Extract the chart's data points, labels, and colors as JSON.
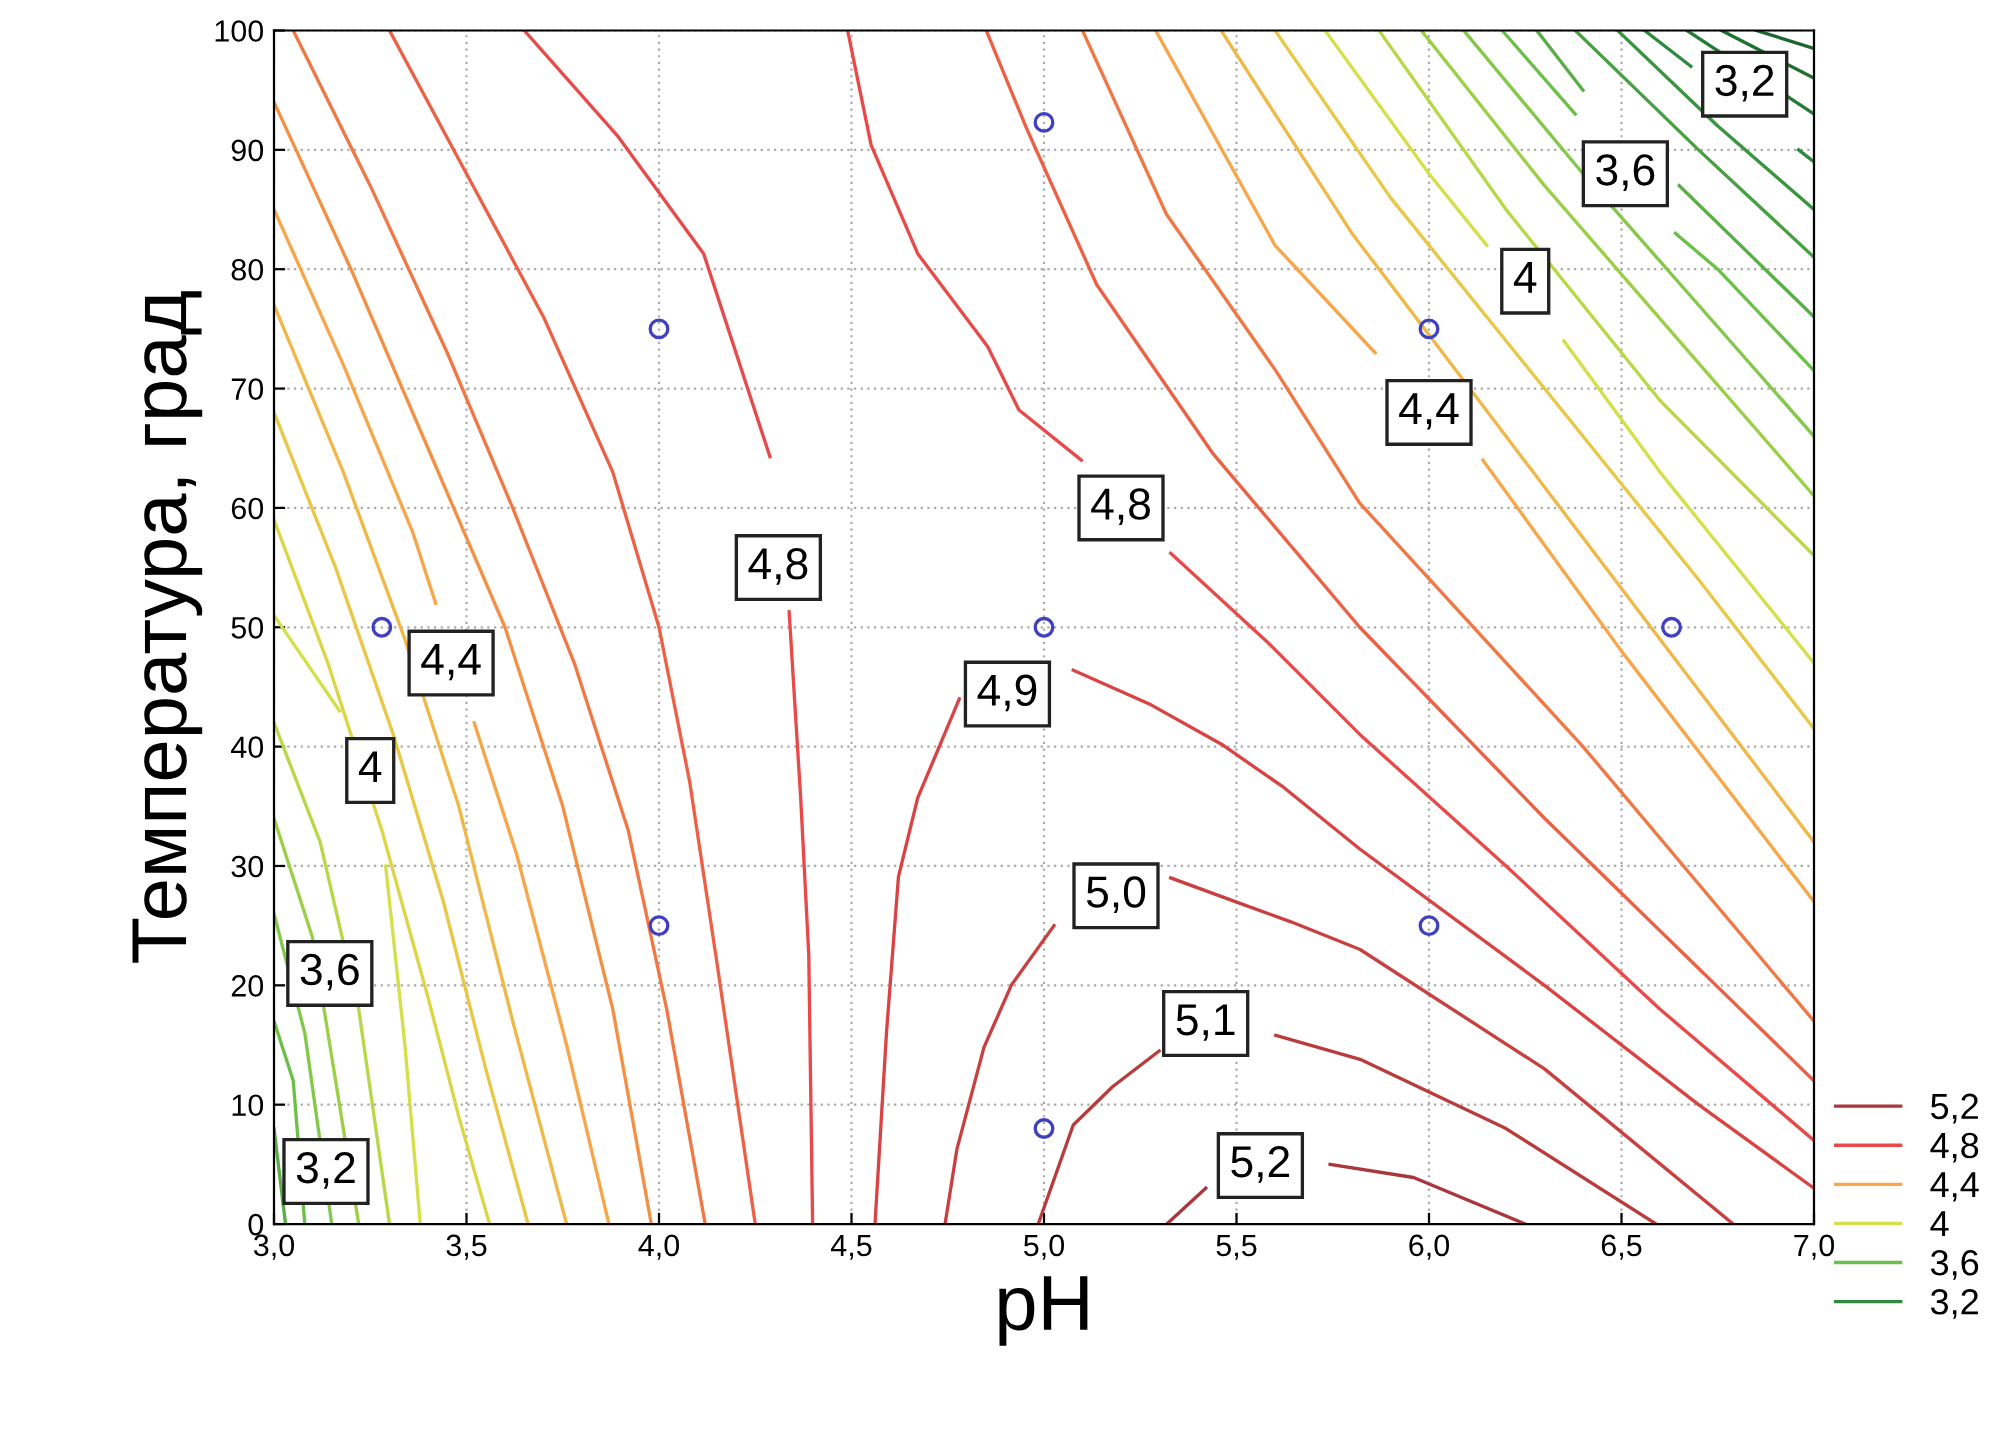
{
  "chart_data": {
    "type": "line",
    "xlabel": "pH",
    "ylabel": "Температура, град",
    "xlim": [
      3,
      7
    ],
    "ylim": [
      0,
      100
    ],
    "xticks": [
      {
        "value": 3,
        "label": "3,0"
      },
      {
        "value": 3.5,
        "label": "3,5"
      },
      {
        "value": 4,
        "label": "4,0"
      },
      {
        "value": 4.5,
        "label": "4,5"
      },
      {
        "value": 5,
        "label": "5,0"
      },
      {
        "value": 5.5,
        "label": "5,5"
      },
      {
        "value": 6,
        "label": "6,0"
      },
      {
        "value": 6.5,
        "label": "6,5"
      },
      {
        "value": 7,
        "label": "7,0"
      }
    ],
    "yticks": [
      0,
      10,
      20,
      30,
      40,
      50,
      60,
      70,
      80,
      90,
      100
    ],
    "grid": true,
    "legend": "right",
    "series": [
      {
        "name": "5,2",
        "color": "#a8383c",
        "x": [
          5.319,
          5.42,
          5.562,
          5.743,
          5.96,
          6.25
        ],
        "values": [
          0,
          3.0,
          null,
          5.0,
          3.9,
          0
        ]
      },
      {
        "name": "4,8",
        "color": "#e84a4a",
        "x": [
          3.65,
          3.894,
          4.116,
          4.288,
          4.31,
          4.338,
          4.368,
          4.389,
          4.399
        ],
        "values": [
          100,
          91.1,
          81.3,
          64.3,
          null,
          51.3,
          35.7,
          22.6,
          0
        ]
      },
      {
        "name": "4,4",
        "color": "#f7a64a",
        "x": [
          3.0,
          3.18,
          3.36,
          3.42,
          3.46,
          3.52,
          3.63,
          3.76,
          3.87
        ],
        "values": [
          85,
          72,
          58,
          52,
          null,
          42,
          31,
          15,
          0
        ]
      },
      {
        "name": "4",
        "color": "#d4e04a",
        "x": [
          3.0,
          3.17,
          3.25,
          3.29,
          3.34,
          3.38
        ],
        "values": [
          51,
          43,
          null,
          30,
          15,
          0
        ]
      },
      {
        "name": "3,6",
        "color": "#6cc04a",
        "x": [
          3.0,
          3.05,
          3.08
        ],
        "values": [
          17,
          12,
          0
        ]
      },
      {
        "name": "3,2",
        "color": "#2e8a3e",
        "x": [
          6.56,
          6.68,
          6.82,
          6.96,
          7.0
        ],
        "values": [
          100,
          97,
          null,
          90,
          89
        ]
      },
      {
        "color": "#ec6046",
        "x": [
          3.3,
          3.5,
          3.7,
          3.88,
          4.0,
          4.08,
          4.15,
          4.25
        ],
        "values": [
          100,
          88,
          76,
          63,
          50,
          37,
          22,
          0
        ]
      },
      {
        "color": "#f07844",
        "x": [
          3.05,
          3.25,
          3.45,
          3.62,
          3.78,
          3.92,
          4.02,
          4.12
        ],
        "values": [
          100,
          87,
          73,
          60,
          47,
          33,
          18,
          0
        ]
      },
      {
        "color": "#f49044",
        "x": [
          3.0,
          3.2,
          3.4,
          3.6,
          3.75,
          3.88,
          3.98
        ],
        "values": [
          94,
          80,
          65,
          50,
          35,
          18,
          0
        ]
      },
      {
        "color": "#f0b848",
        "x": [
          3.0,
          3.18,
          3.34,
          3.48,
          3.62,
          3.76
        ],
        "values": [
          77,
          63,
          49,
          35,
          17,
          0
        ]
      },
      {
        "color": "#e8c846",
        "x": [
          3.0,
          3.16,
          3.31,
          3.44,
          3.55,
          3.66
        ],
        "values": [
          68,
          55,
          41,
          27,
          13,
          0
        ]
      },
      {
        "color": "#dcd646",
        "x": [
          3.0,
          3.14,
          3.28,
          3.4,
          3.48,
          3.56
        ],
        "values": [
          59,
          47,
          33,
          19,
          9,
          0
        ]
      },
      {
        "color": "#b8d848",
        "x": [
          3.0,
          3.12,
          3.22,
          3.3
        ],
        "values": [
          42,
          32,
          18,
          0
        ]
      },
      {
        "color": "#9ccf48",
        "x": [
          3.0,
          3.1,
          3.16,
          3.22
        ],
        "values": [
          34,
          24,
          12,
          0
        ]
      },
      {
        "color": "#84c84a",
        "x": [
          3.0,
          3.08,
          3.15
        ],
        "values": [
          26,
          16,
          0
        ]
      },
      {
        "color": "#5aae46",
        "x": [
          3.0,
          3.03
        ],
        "values": [
          8,
          0
        ]
      },
      {
        "color": "#e84a4a",
        "x": [
          4.49,
          4.551,
          4.672,
          4.854,
          4.935,
          5.097,
          5.2,
          5.329,
          5.582,
          5.821,
          6.2,
          6.6,
          7.0
        ],
        "values": [
          100,
          90.4,
          81.3,
          73.5,
          68.2,
          64.0,
          null,
          56.2,
          48.7,
          41,
          30,
          18,
          7
        ]
      },
      {
        "color": "#d84444",
        "x": [
          4.561,
          4.591,
          4.622,
          4.672,
          4.78,
          4.905,
          5.076,
          5.278,
          5.461,
          5.622,
          5.821,
          6.3,
          6.7,
          7.0
        ],
        "values": [
          0,
          16.1,
          29.1,
          35.7,
          44,
          null,
          46.4,
          43.5,
          40.2,
          36.6,
          31.4,
          20,
          10,
          3
        ]
      },
      {
        "color": "#c84040",
        "x": [
          4.743,
          4.774,
          4.844,
          4.915,
          5.026,
          5.187,
          5.329,
          5.481,
          5.643,
          5.821,
          6.3,
          6.79
        ],
        "values": [
          0,
          6.3,
          14.8,
          20.0,
          25,
          null,
          29.0,
          27.2,
          25.3,
          23.0,
          13,
          0
        ]
      },
      {
        "color": "#b83c3c",
        "x": [
          4.985,
          5.076,
          5.178,
          5.299,
          5.42,
          5.602,
          5.821,
          6.2,
          6.59
        ],
        "values": [
          0,
          8.3,
          11.5,
          14.5,
          null,
          15.8,
          13.8,
          8,
          0
        ]
      },
      {
        "color": "#ec6046",
        "x": [
          4.85,
          4.956,
          5.137,
          5.44,
          5.82,
          6.3,
          7.0
        ],
        "values": [
          100,
          91.7,
          78.7,
          64.5,
          50,
          34,
          12
        ]
      },
      {
        "color": "#f07844",
        "x": [
          5.1,
          5.318,
          5.602,
          5.82,
          6.4,
          7.0
        ],
        "values": [
          100,
          84.6,
          71.5,
          60.4,
          40,
          17
        ]
      },
      {
        "color": "#f7a64a",
        "x": [
          5.29,
          5.6,
          5.86,
          6.0,
          6.14,
          6.5,
          7.0
        ],
        "values": [
          100,
          82,
          73,
          null,
          64,
          48,
          27
        ]
      },
      {
        "color": "#f0b848",
        "x": [
          5.46,
          5.8,
          6.2,
          6.6,
          7.0
        ],
        "values": [
          100,
          83,
          66,
          49,
          32
        ]
      },
      {
        "color": "#e8c846",
        "x": [
          5.6,
          5.9,
          6.3,
          6.7,
          7.0
        ],
        "values": [
          100,
          86,
          70,
          54,
          41.5
        ]
      },
      {
        "color": "#d4e04a",
        "x": [
          5.73,
          6.0,
          6.15,
          6.25,
          6.35,
          6.6,
          7.0
        ],
        "values": [
          100,
          88,
          82,
          null,
          74,
          63,
          47
        ]
      },
      {
        "color": "#b8d848",
        "x": [
          5.87,
          6.2,
          6.6,
          7.0
        ],
        "values": [
          100,
          85,
          69,
          56
        ]
      },
      {
        "color": "#9ccf48",
        "x": [
          5.98,
          6.3,
          6.65,
          7.0
        ],
        "values": [
          100,
          87,
          74,
          61
        ]
      },
      {
        "color": "#84c84a",
        "x": [
          6.09,
          6.4,
          6.7,
          7.0
        ],
        "values": [
          100,
          88,
          77,
          66
        ]
      },
      {
        "color": "#6cc04a",
        "x": [
          6.19,
          6.38,
          6.51,
          6.64,
          6.75,
          7.0
        ],
        "values": [
          100,
          93,
          null,
          83,
          80,
          71.5
        ]
      },
      {
        "color": "#5aae46",
        "x": [
          6.28,
          6.4,
          6.51,
          6.65,
          7.0
        ],
        "values": [
          100,
          95,
          null,
          87,
          76
        ]
      },
      {
        "color": "#48a042",
        "x": [
          6.38,
          6.7,
          7.0
        ],
        "values": [
          100,
          90,
          81
        ]
      },
      {
        "color": "#3a9440",
        "x": [
          6.49,
          6.75,
          7.0
        ],
        "values": [
          100,
          92,
          85
        ]
      },
      {
        "color": "#267c36",
        "x": [
          6.67,
          7.0
        ],
        "values": [
          100,
          93
        ]
      },
      {
        "color": "#207030",
        "x": [
          6.76,
          7.0
        ],
        "values": [
          100,
          96
        ]
      },
      {
        "color": "#1c6630",
        "x": [
          6.85,
          7.0
        ],
        "values": [
          100,
          98.5
        ]
      },
      {
        "type": "scatter",
        "marker": "circle",
        "color": "#4040c0",
        "x": [
          3.28,
          4.0,
          4.0,
          5.0,
          5.0,
          5.0,
          6.0,
          6.0,
          6.63
        ],
        "values": [
          50,
          75,
          25,
          92.3,
          50,
          8,
          75,
          25,
          50
        ]
      }
    ],
    "annotations": [
      {
        "text": "4,8",
        "x": 4.31,
        "y": 55
      },
      {
        "text": "4,4",
        "x": 3.46,
        "y": 47
      },
      {
        "text": "4",
        "x": 3.25,
        "y": 38
      },
      {
        "text": "3,6",
        "x": 3.145,
        "y": 21
      },
      {
        "text": "3,2",
        "x": 3.135,
        "y": 4.4
      },
      {
        "text": "4,8",
        "x": 5.2,
        "y": 60
      },
      {
        "text": "4,9",
        "x": 4.905,
        "y": 44.4
      },
      {
        "text": "5,0",
        "x": 5.187,
        "y": 27.5
      },
      {
        "text": "5,1",
        "x": 5.42,
        "y": 16.8
      },
      {
        "text": "5,2",
        "x": 5.562,
        "y": 4.9
      },
      {
        "text": "4,4",
        "x": 6.0,
        "y": 68
      },
      {
        "text": "4",
        "x": 6.25,
        "y": 79
      },
      {
        "text": "3,6",
        "x": 6.51,
        "y": 88
      },
      {
        "text": "3,2",
        "x": 6.82,
        "y": 95.5
      }
    ]
  }
}
